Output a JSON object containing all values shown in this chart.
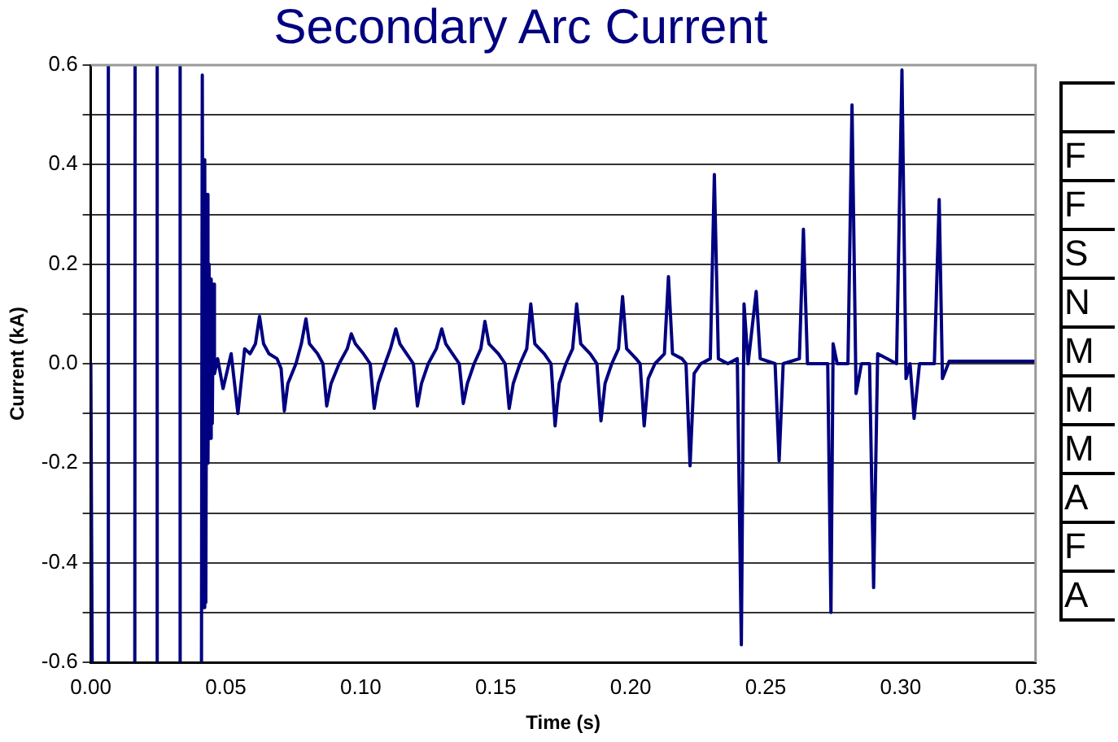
{
  "chart_data": {
    "type": "line",
    "title": "Secondary Arc Current",
    "xlabel": "Time (s)",
    "ylabel": "Current (kA)",
    "xlim": [
      0,
      0.35
    ],
    "xticks": [
      {
        "value": 0,
        "label": "0.00"
      },
      0.05,
      {
        "value": 0.1,
        "label": "0.10"
      },
      0.15,
      {
        "value": 0.2,
        "label": "0.20"
      },
      0.25,
      {
        "value": 0.3,
        "label": "0.30"
      },
      0.35
    ],
    "ylim": [
      -0.6,
      0.6
    ],
    "yticks": [
      -0.6,
      {
        "value": -0.5,
        "label": null
      },
      -0.4,
      {
        "value": -0.3,
        "label": null
      },
      -0.2,
      {
        "value": -0.1,
        "label": null
      },
      {
        "value": 0,
        "label": "0.0"
      },
      {
        "value": 0.1,
        "label": null
      },
      0.2,
      {
        "value": 0.3,
        "label": null
      },
      0.4,
      {
        "value": 0.5,
        "label": null
      },
      0.6
    ],
    "grid": "y",
    "marker": "none",
    "line_style": "solid",
    "annotations": [
      "F",
      "F",
      "S",
      "N",
      "M",
      "M",
      "M",
      "A",
      "F",
      "A"
    ],
    "series": [
      {
        "color": "#000080",
        "x": [
          0,
          0.0005,
          0.003,
          0.0064,
          0.0065,
          0.011,
          0.0163,
          0.0164,
          0.02,
          0.0245,
          0.0246,
          0.029,
          0.033,
          0.0331,
          0.037,
          0.041,
          0.0413,
          0.0418,
          0.0422,
          0.0426,
          0.043,
          0.0434,
          0.0438,
          0.0442,
          0.0446,
          0.045,
          0.0454,
          0.0458,
          0.047,
          0.049,
          0.052,
          0.0545,
          0.057,
          0.059,
          0.061,
          0.0625,
          0.064,
          0.066,
          0.069,
          0.0705,
          0.0717,
          0.073,
          0.076,
          0.078,
          0.0797,
          0.081,
          0.084,
          0.086,
          0.0874,
          0.089,
          0.092,
          0.095,
          0.0965,
          0.098,
          0.101,
          0.1035,
          0.105,
          0.1065,
          0.109,
          0.111,
          0.113,
          0.1145,
          0.117,
          0.1195,
          0.121,
          0.1225,
          0.125,
          0.128,
          0.13,
          0.1315,
          0.134,
          0.1365,
          0.138,
          0.1395,
          0.142,
          0.1445,
          0.146,
          0.1475,
          0.151,
          0.1535,
          0.155,
          0.1565,
          0.159,
          0.1615,
          0.163,
          0.1645,
          0.168,
          0.1705,
          0.172,
          0.1735,
          0.176,
          0.1785,
          0.18,
          0.1815,
          0.185,
          0.1875,
          0.189,
          0.1905,
          0.193,
          0.1955,
          0.197,
          0.1985,
          0.202,
          0.2035,
          0.205,
          0.2065,
          0.209,
          0.2125,
          0.214,
          0.2155,
          0.219,
          0.2205,
          0.222,
          0.2235,
          0.226,
          0.2295,
          0.231,
          0.2325,
          0.236,
          0.2395,
          0.241,
          0.242,
          0.2435,
          0.2465,
          0.248,
          0.2535,
          0.255,
          0.2565,
          0.2625,
          0.264,
          0.2655,
          0.273,
          0.2742,
          0.275,
          0.2765,
          0.2805,
          0.282,
          0.2835,
          0.2855,
          0.2885,
          0.29,
          0.2915,
          0.2985,
          0.3005,
          0.302,
          0.3035,
          0.305,
          0.307,
          0.3125,
          0.3143,
          0.3155,
          0.318,
          0.33,
          0.35
        ],
        "values": [
          0,
          -0.6,
          null,
          -0.6,
          0.6,
          null,
          -0.6,
          0.6,
          null,
          -0.6,
          0.6,
          null,
          -0.6,
          0.6,
          null,
          -0.6,
          0.58,
          -0.49,
          0.41,
          -0.48,
          0.34,
          -0.2,
          0.2,
          -0.15,
          0.17,
          -0.12,
          0.16,
          -0.02,
          0.01,
          -0.05,
          0.02,
          -0.1,
          0.03,
          0.02,
          0.04,
          0.095,
          0.04,
          0.02,
          0.01,
          -0.01,
          -0.095,
          -0.04,
          0,
          0.04,
          0.09,
          0.04,
          0.02,
          0,
          -0.085,
          -0.04,
          0,
          0.03,
          0.06,
          0.04,
          0.02,
          0,
          -0.09,
          -0.04,
          0,
          0.03,
          0.07,
          0.04,
          0.02,
          0,
          -0.085,
          -0.04,
          0,
          0.03,
          0.07,
          0.04,
          0.02,
          0,
          -0.08,
          -0.04,
          0,
          0.03,
          0.085,
          0.04,
          0.02,
          0,
          -0.09,
          -0.04,
          0,
          0.03,
          0.12,
          0.04,
          0.02,
          0,
          -0.125,
          -0.04,
          0,
          0.03,
          0.12,
          0.04,
          0.02,
          0,
          -0.115,
          -0.04,
          0,
          0.03,
          0.135,
          0.03,
          0.01,
          0,
          -0.125,
          -0.03,
          0,
          0.02,
          0.175,
          0.02,
          0.01,
          0,
          -0.205,
          -0.02,
          0,
          0.01,
          0.38,
          0.01,
          0,
          0.01,
          -0.565,
          0.12,
          0,
          0.145,
          0.01,
          0,
          -0.195,
          0,
          0.01,
          0.27,
          0,
          0,
          -0.5,
          0.04,
          0,
          0,
          0.52,
          -0.06,
          0,
          0,
          -0.45,
          0.02,
          0,
          0.59,
          -0.03,
          0,
          -0.11,
          0,
          0,
          0.33,
          -0.03,
          0.005,
          0.005,
          0.005
        ]
      }
    ]
  }
}
